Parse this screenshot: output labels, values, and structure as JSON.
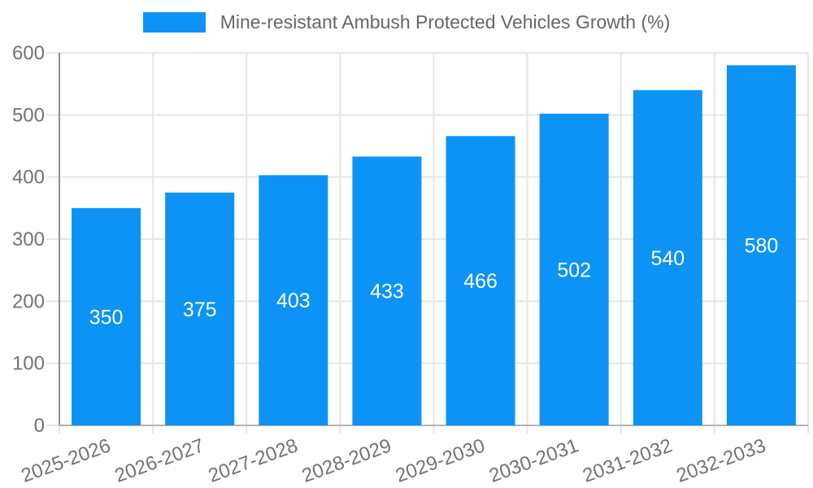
{
  "legend": {
    "label": "Mine-resistant Ambush Protected Vehicles Growth (%)"
  },
  "colors": {
    "bar": "#0D93F5",
    "grid": "#e5e5e5",
    "y_axis_line": "#8f8f8f",
    "x_axis_line": "#b3b3b3",
    "tick_text": "#737373",
    "legend_text": "#666666",
    "bar_label_text": "#ffffff",
    "background": "#ffffff"
  },
  "chart_data": {
    "type": "bar",
    "title": "Mine-resistant Ambush Protected Vehicles Growth (%)",
    "categories": [
      "2025-2026",
      "2026-2027",
      "2027-2028",
      "2028-2029",
      "2029-2030",
      "2030-2031",
      "2031-2032",
      "2032-2033"
    ],
    "values": [
      350,
      375,
      403,
      433,
      466,
      502,
      540,
      580
    ],
    "xlabel": "",
    "ylabel": "",
    "ylim": [
      0,
      600
    ],
    "y_ticks": [
      0,
      100,
      200,
      300,
      400,
      500,
      600
    ],
    "grid": true,
    "legend_position": "top",
    "bar_value_labels": "inside-center"
  }
}
